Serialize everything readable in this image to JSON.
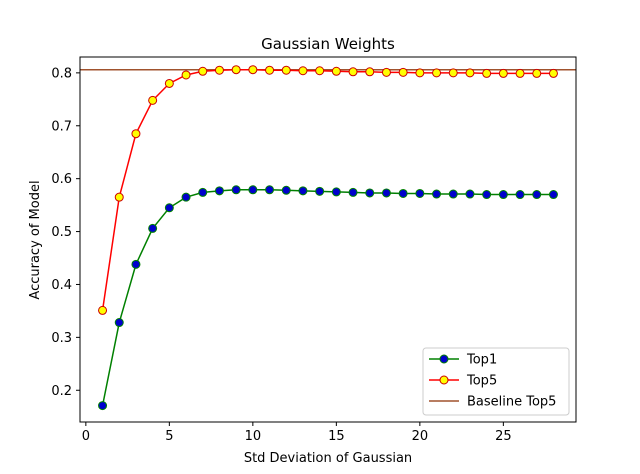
{
  "chart_data": {
    "type": "line",
    "title": "Gaussian Weights",
    "xlabel": "Std Deviation of Gaussian",
    "ylabel": "Accuracy of Model",
    "xlim": [
      -0.35,
      29.35
    ],
    "ylim": [
      0.14,
      0.83
    ],
    "x_ticks": [
      0,
      5,
      10,
      15,
      20,
      25
    ],
    "y_ticks": [
      0.2,
      0.3,
      0.4,
      0.5,
      0.6,
      0.7,
      0.8
    ],
    "x": [
      1,
      2,
      3,
      4,
      5,
      6,
      7,
      8,
      9,
      10,
      11,
      12,
      13,
      14,
      15,
      16,
      17,
      18,
      19,
      20,
      21,
      22,
      23,
      24,
      25,
      26,
      27,
      28
    ],
    "series": [
      {
        "name": "Top1",
        "line_color": "#008000",
        "marker_face": "#0000cc",
        "marker_edge": "#008000",
        "values": [
          0.171,
          0.328,
          0.438,
          0.506,
          0.545,
          0.565,
          0.574,
          0.577,
          0.579,
          0.579,
          0.579,
          0.578,
          0.577,
          0.576,
          0.575,
          0.574,
          0.573,
          0.573,
          0.572,
          0.572,
          0.571,
          0.571,
          0.571,
          0.57,
          0.57,
          0.57,
          0.57,
          0.57
        ]
      },
      {
        "name": "Top5",
        "line_color": "#ff0000",
        "marker_face": "#ffff00",
        "marker_edge": "#cc0000",
        "values": [
          0.351,
          0.565,
          0.685,
          0.748,
          0.78,
          0.796,
          0.803,
          0.805,
          0.806,
          0.806,
          0.805,
          0.805,
          0.804,
          0.804,
          0.803,
          0.802,
          0.802,
          0.801,
          0.801,
          0.8,
          0.8,
          0.8,
          0.8,
          0.799,
          0.799,
          0.799,
          0.799,
          0.799
        ]
      }
    ],
    "baseline": {
      "name": "Baseline Top5",
      "value": 0.806,
      "color": "#a0522d"
    },
    "grid": false,
    "legend_position": "lower-right"
  }
}
